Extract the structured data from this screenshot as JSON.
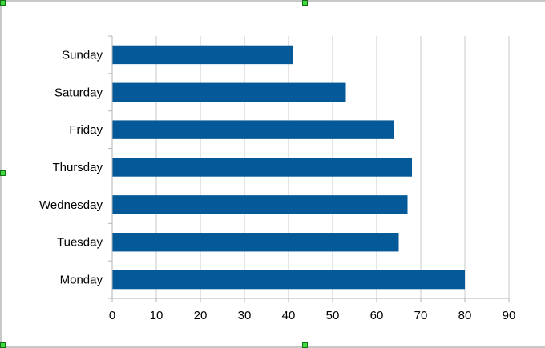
{
  "chart_data": {
    "type": "bar",
    "orientation": "horizontal",
    "categories": [
      "Monday",
      "Tuesday",
      "Wednesday",
      "Thursday",
      "Friday",
      "Saturday",
      "Sunday"
    ],
    "values": [
      80,
      65,
      67,
      68,
      64,
      53,
      41
    ],
    "x_ticks": [
      "0",
      "10",
      "20",
      "30",
      "40",
      "50",
      "60",
      "70",
      "80",
      "90"
    ],
    "xlim": [
      0,
      90
    ],
    "grid": true,
    "legend": "none",
    "colors": {
      "bar": "#045a99",
      "grid": "#c9c9c9",
      "axis": "#b3b3b3",
      "label": "#000000"
    }
  }
}
